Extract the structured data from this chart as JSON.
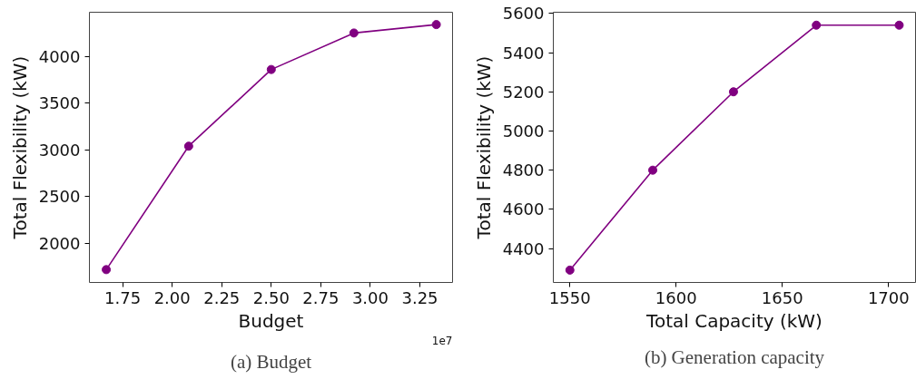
{
  "chart_data": [
    {
      "type": "line",
      "title": "(a) Budget",
      "xlabel": "Budget",
      "ylabel": "Total Flexibility (kW)",
      "marker": "circle",
      "grid": false,
      "x": [
        1.667,
        2.083,
        2.5,
        2.917,
        3.333
      ],
      "series": [
        {
          "color": "#800080",
          "values": [
            1720,
            3040,
            3860,
            4250,
            4340
          ]
        }
      ],
      "xlim": [
        1.582,
        3.415
      ],
      "ylim": [
        1583,
        4472
      ],
      "xticks": [
        {
          "value": 1.75,
          "label": "1.75"
        },
        {
          "value": 2.0,
          "label": "2.00"
        },
        {
          "value": 2.25,
          "label": "2.25"
        },
        {
          "value": 2.5,
          "label": "2.50"
        },
        {
          "value": 2.75,
          "label": "2.75"
        },
        {
          "value": 3.0,
          "label": "3.00"
        },
        {
          "value": 3.25,
          "label": "3.25"
        }
      ],
      "yticks": [
        2000,
        2500,
        3000,
        3500,
        4000
      ],
      "annotations": [
        "1e7"
      ]
    },
    {
      "type": "line",
      "title": "(b) Generation capacity",
      "xlabel": "Total Capacity (kW)",
      "ylabel": "Total Flexibility (kW)",
      "marker": "circle",
      "grid": false,
      "x": [
        1550,
        1589,
        1627,
        1666,
        1705
      ],
      "series": [
        {
          "color": "#800080",
          "values": [
            4290,
            4800,
            5200,
            5540,
            5540
          ]
        }
      ],
      "xlim": [
        1542.2,
        1712.7
      ],
      "ylim": [
        4227,
        5606
      ],
      "xticks": [
        1550,
        1600,
        1650,
        1700
      ],
      "yticks": [
        4400,
        4600,
        4800,
        5000,
        5200,
        5400,
        5600
      ]
    }
  ]
}
